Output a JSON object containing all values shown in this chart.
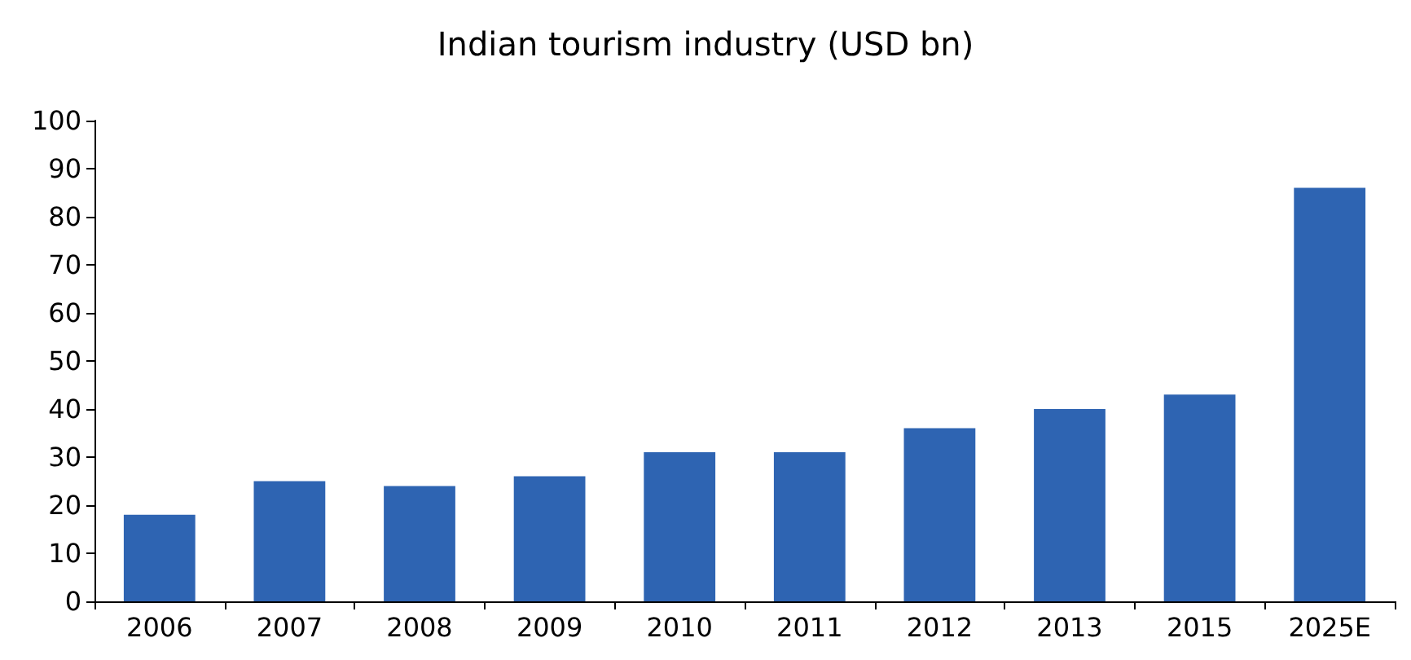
{
  "chart_data": {
    "type": "bar",
    "title": "Indian tourism industry (USD bn)",
    "categories": [
      "2006",
      "2007",
      "2008",
      "2009",
      "2010",
      "2011",
      "2012",
      "2013",
      "2015",
      "2025E"
    ],
    "values": [
      18,
      25,
      24,
      26,
      31,
      31,
      36,
      40,
      43,
      86
    ],
    "color": "#2e64b2",
    "ylim": [
      0,
      100
    ],
    "yticks": [
      0,
      10,
      20,
      30,
      40,
      50,
      60,
      70,
      80,
      90,
      100
    ],
    "grid": false
  }
}
